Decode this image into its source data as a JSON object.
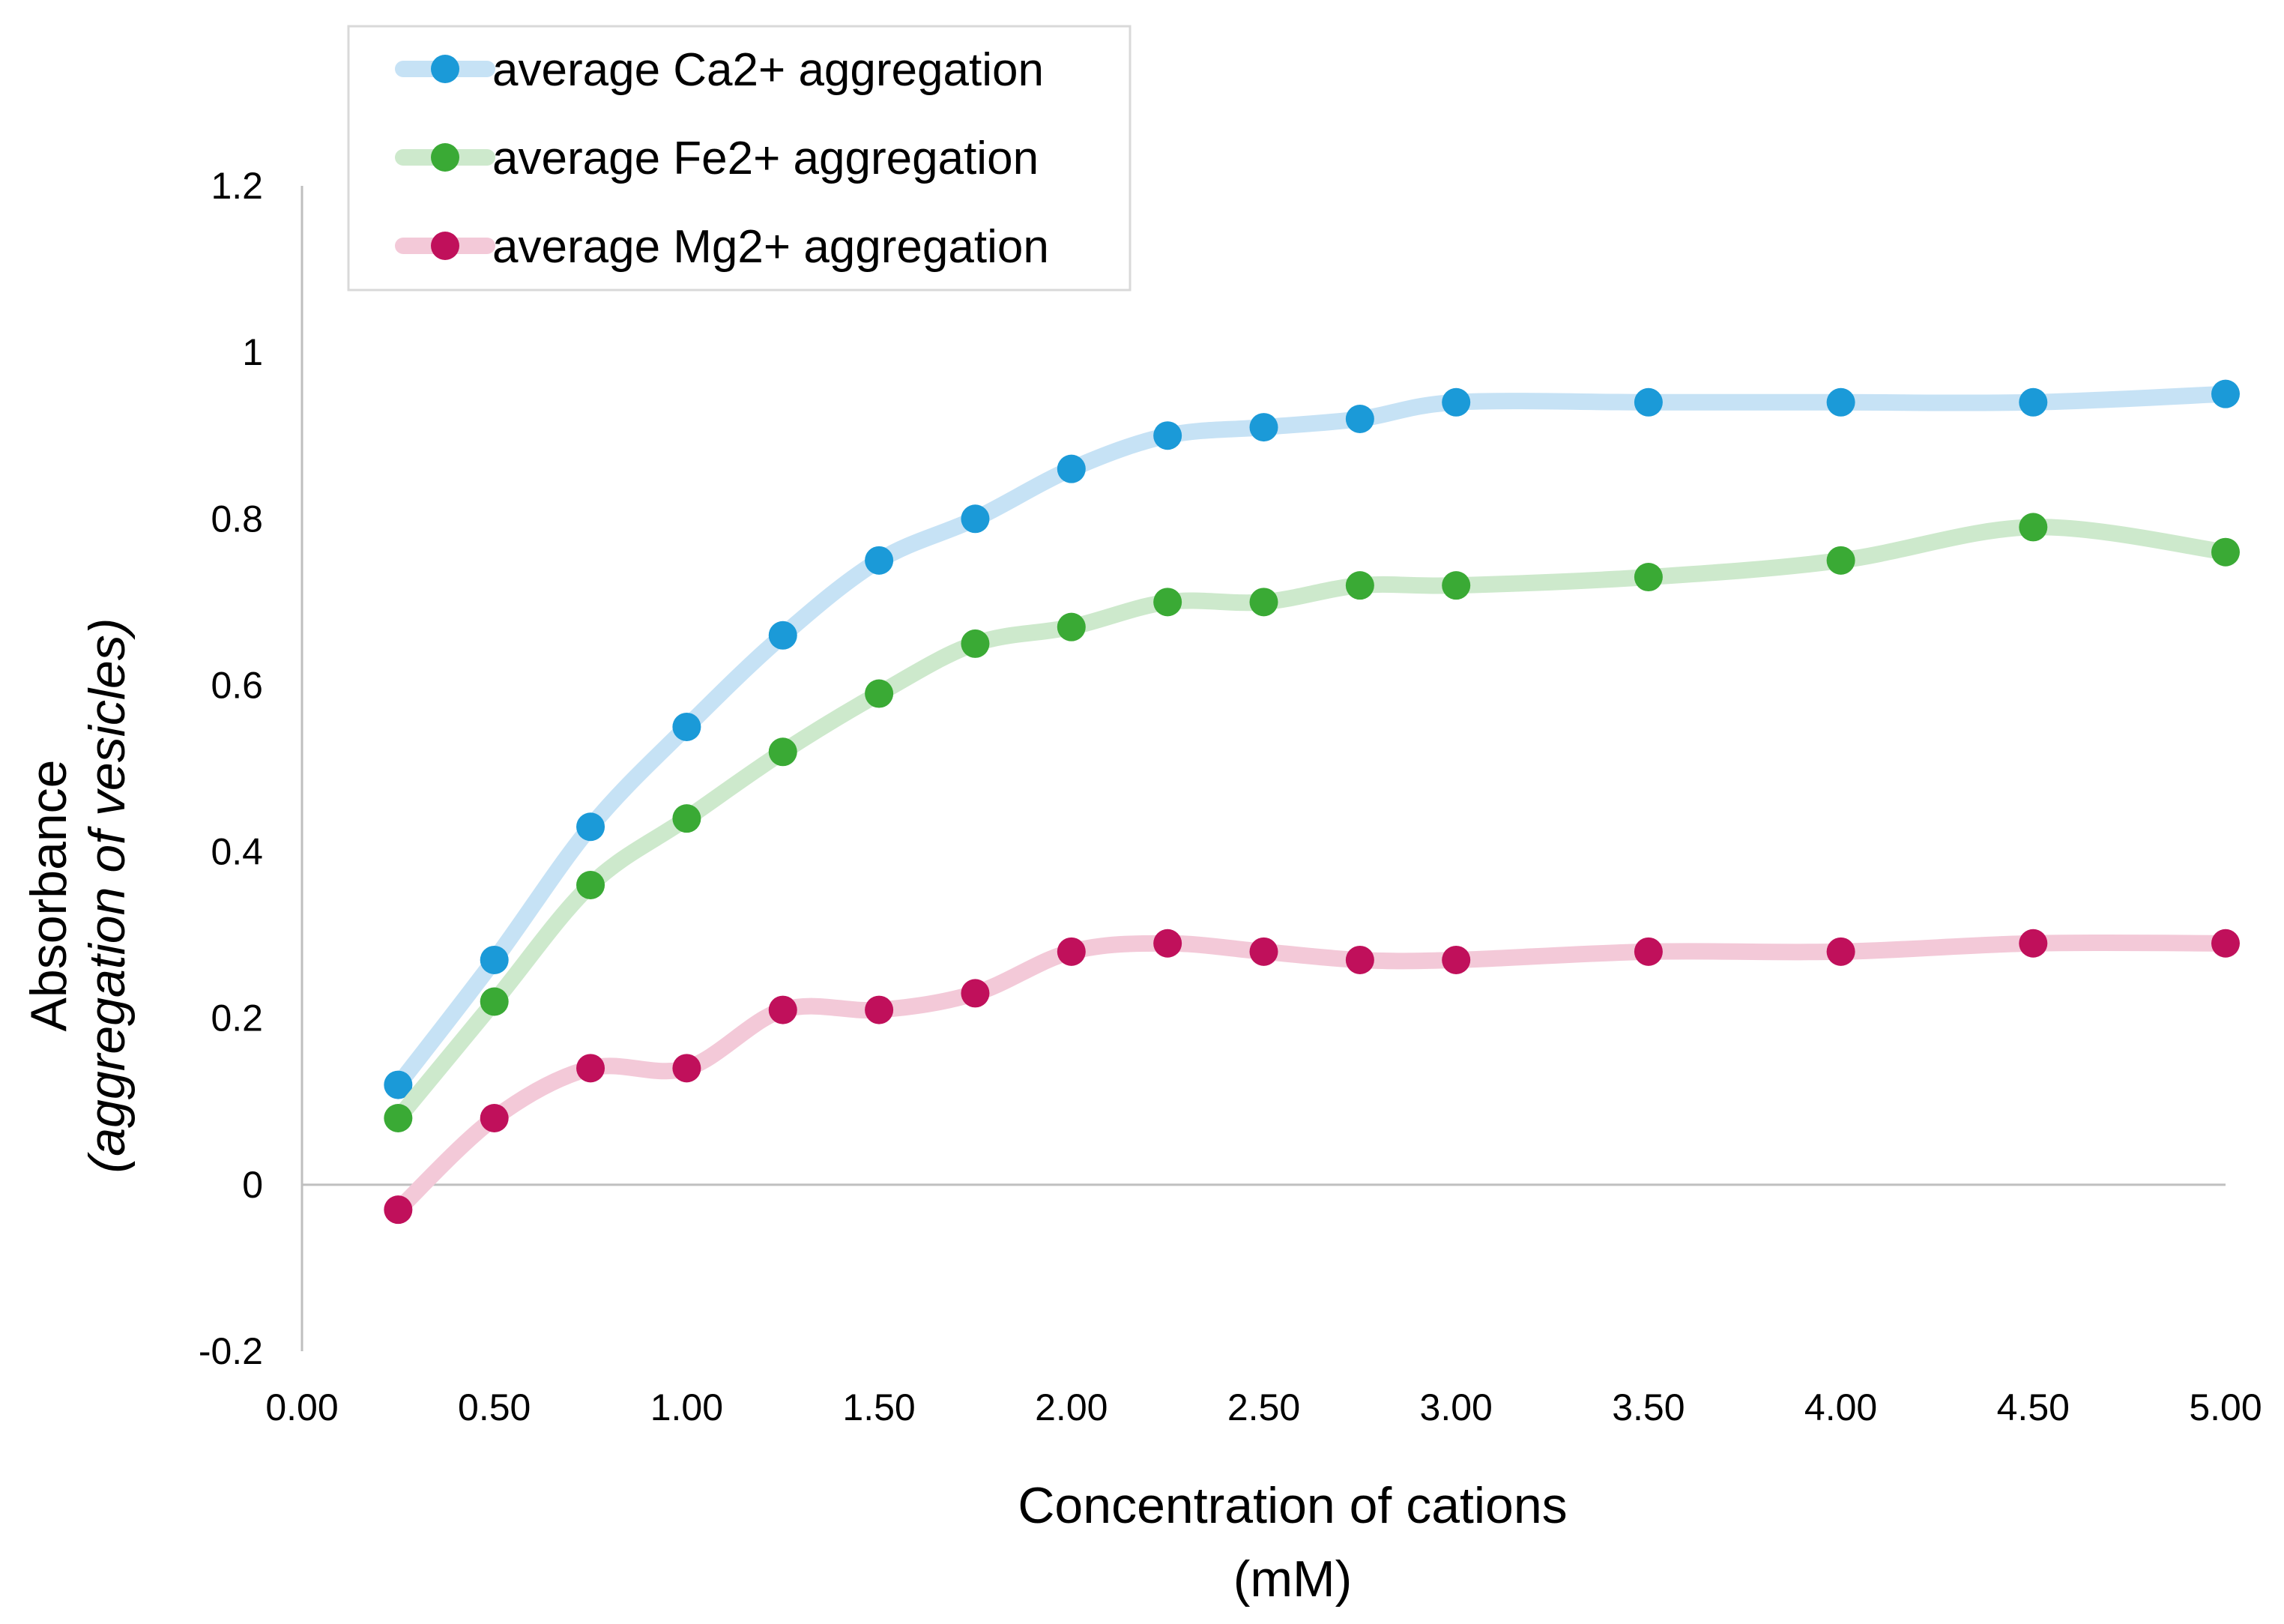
{
  "chart_data": {
    "type": "line",
    "xlabel": "Concentration of cations",
    "xlabel_unit": "(mM)",
    "ylabel": "Absorbance",
    "ylabel_sub": "(aggregation of vesicles)",
    "xlim": [
      0,
      5
    ],
    "ylim": [
      -0.2,
      1.2
    ],
    "x_ticks": [
      "0.00",
      "0.50",
      "1.00",
      "1.50",
      "2.00",
      "2.50",
      "3.00",
      "3.50",
      "4.00",
      "4.50",
      "5.00"
    ],
    "y_ticks": [
      "-0.2",
      "0",
      "0.2",
      "0.4",
      "0.6",
      "0.8",
      "1",
      "1.2"
    ],
    "grid": false,
    "legend_position": "top-left",
    "x": [
      0.25,
      0.5,
      0.75,
      1.0,
      1.25,
      1.5,
      1.75,
      2.0,
      2.25,
      2.5,
      2.75,
      3.0,
      3.5,
      4.0,
      4.5,
      5.0
    ],
    "series": [
      {
        "name": "average Ca2+ aggregation",
        "marker_color": "#1b9ad8",
        "line_color": "#c6e2f5",
        "values": [
          0.12,
          0.27,
          0.43,
          0.55,
          0.66,
          0.75,
          0.8,
          0.86,
          0.9,
          0.91,
          0.92,
          0.94,
          0.94,
          0.94,
          0.94,
          0.95
        ]
      },
      {
        "name": "average Fe2+ aggregation",
        "marker_color": "#3aaa35",
        "line_color": "#cde9cc",
        "values": [
          0.08,
          0.22,
          0.36,
          0.44,
          0.52,
          0.59,
          0.65,
          0.67,
          0.7,
          0.7,
          0.72,
          0.72,
          0.73,
          0.75,
          0.79,
          0.76
        ]
      },
      {
        "name": "average Mg2+ aggregation",
        "marker_color": "#c0105b",
        "line_color": "#f3c9d8",
        "values": [
          -0.03,
          0.08,
          0.14,
          0.14,
          0.21,
          0.21,
          0.23,
          0.28,
          0.29,
          0.28,
          0.27,
          0.27,
          0.28,
          0.28,
          0.29,
          0.29
        ]
      }
    ]
  }
}
